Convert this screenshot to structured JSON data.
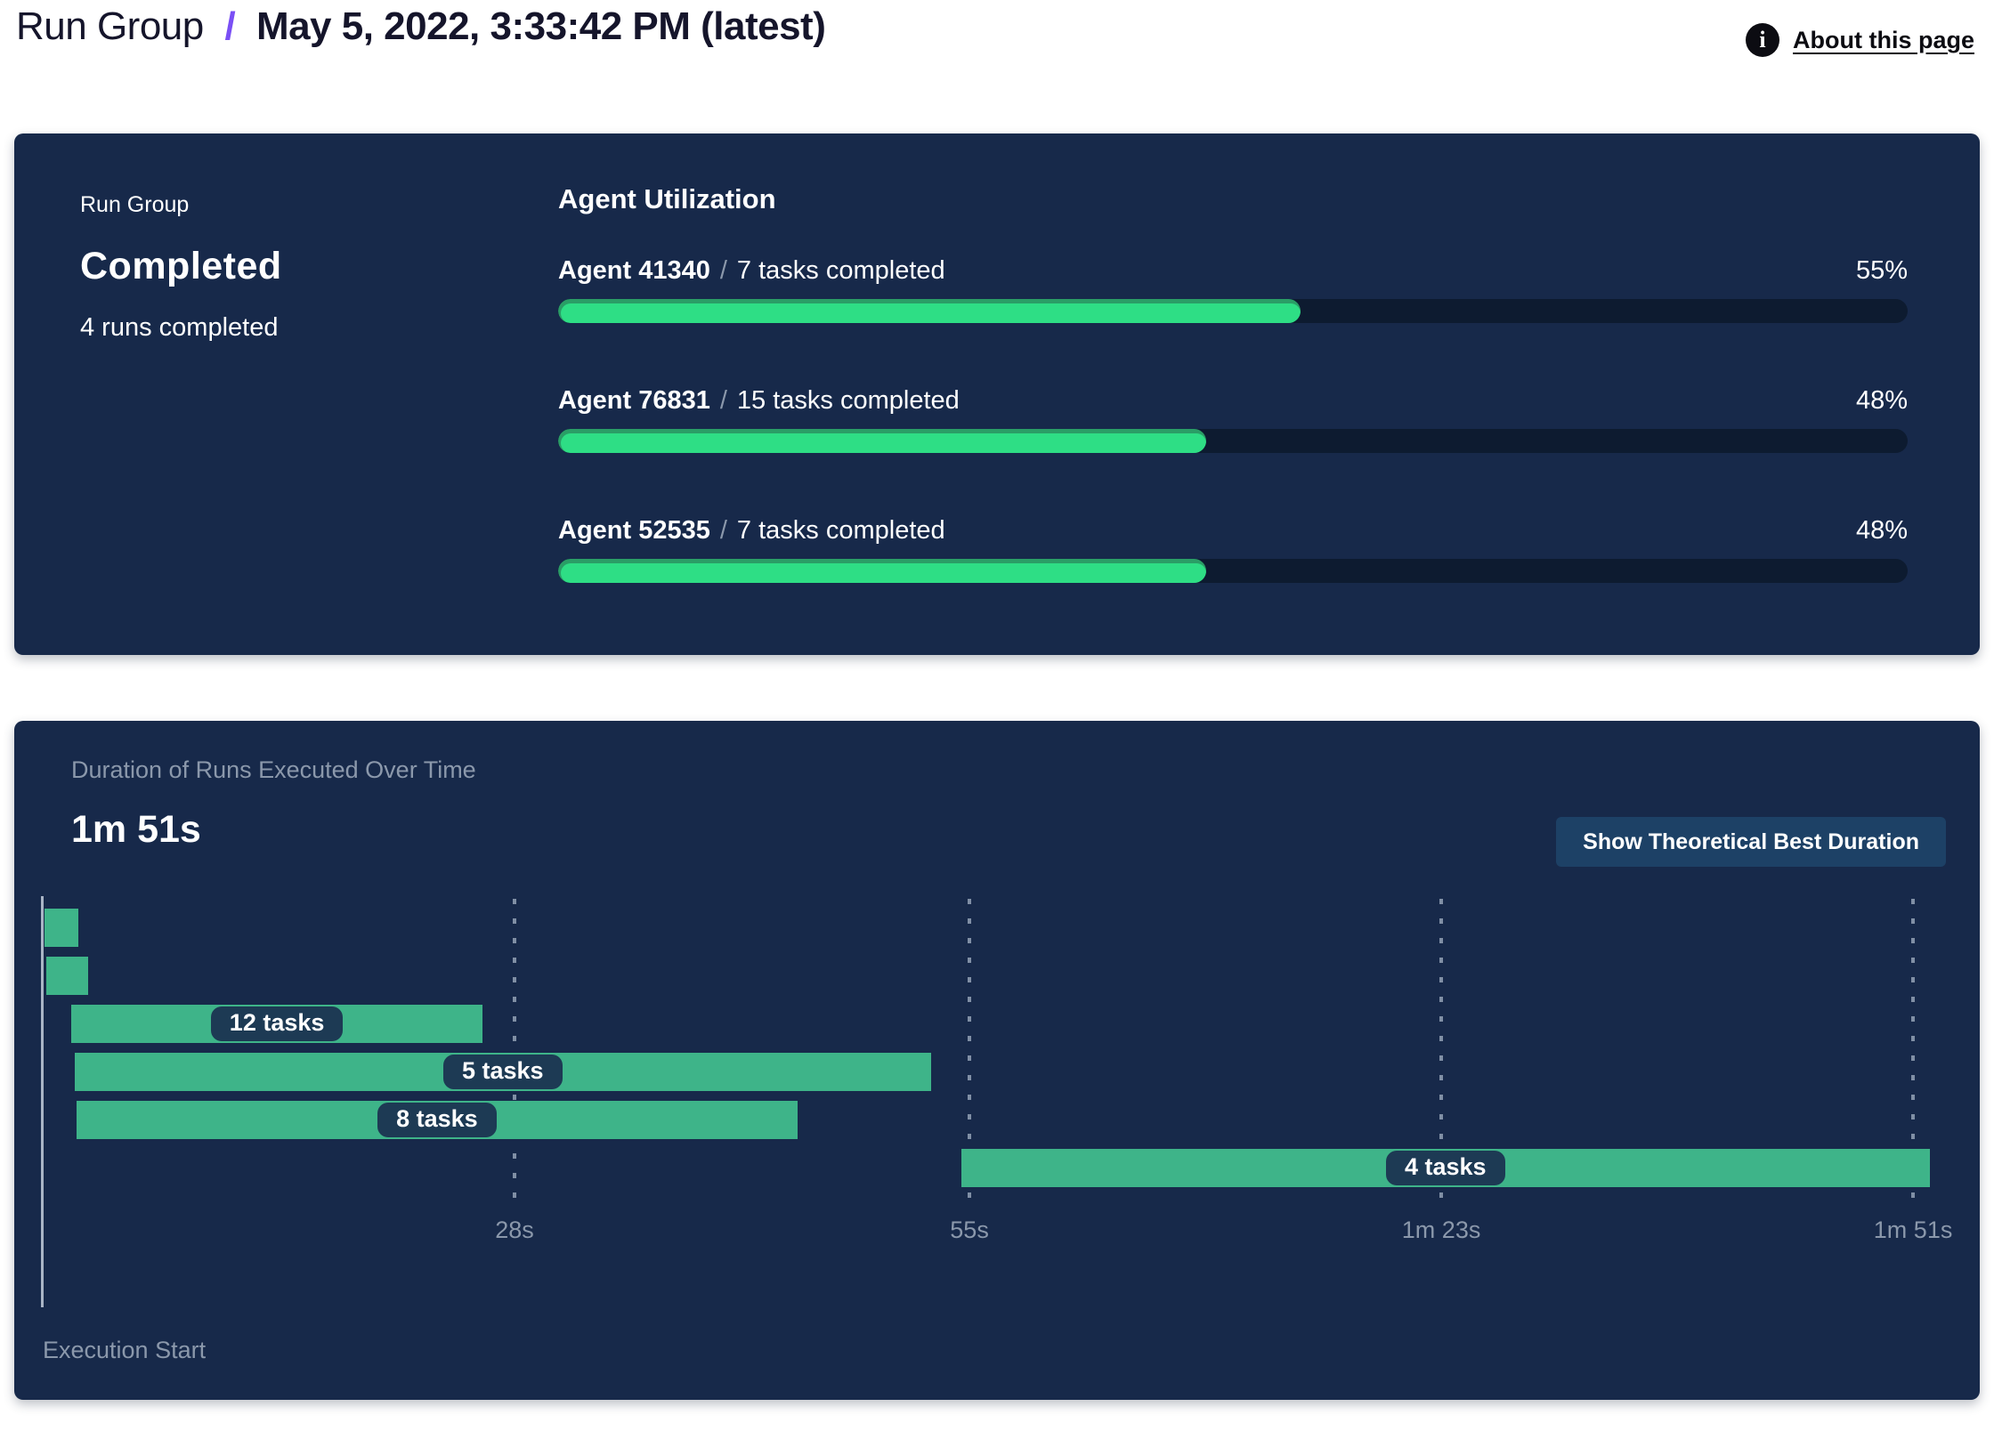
{
  "header": {
    "breadcrumb_root": "Run Group",
    "breadcrumb_separator": "/",
    "breadcrumb_current": "May 5, 2022, 3:33:42 PM (latest)",
    "info_icon": "info-icon",
    "about_link": "About this page"
  },
  "summary_panel": {
    "kicker": "Run Group",
    "status": "Completed",
    "subtitle": "4 runs completed",
    "section_title": "Agent Utilization",
    "separator": "/",
    "agents": [
      {
        "name": "Agent 41340",
        "tasks": "7 tasks completed",
        "percent": 55
      },
      {
        "name": "Agent 76831",
        "tasks": "15 tasks completed",
        "percent": 48
      },
      {
        "name": "Agent 52535",
        "tasks": "7 tasks completed",
        "percent": 48
      }
    ]
  },
  "duration_panel": {
    "title": "Duration of Runs Executed Over Time",
    "total_duration": "1m 51s",
    "button_label": "Show Theoretical Best Duration",
    "axis_label": "Execution Start"
  },
  "chart_data": [
    {
      "type": "bar",
      "orientation": "horizontal",
      "title": "Agent Utilization",
      "categories": [
        "Agent 41340",
        "Agent 76831",
        "Agent 52535"
      ],
      "values": [
        55,
        48,
        48
      ],
      "value_unit": "%",
      "annotations": [
        "7 tasks completed",
        "15 tasks completed",
        "7 tasks completed"
      ],
      "xlim": [
        0,
        100
      ],
      "grid": false
    },
    {
      "type": "bar",
      "subtype": "gantt-timeline",
      "title": "Duration of Runs Executed Over Time",
      "total_label": "1m 51s",
      "xlabel": "Execution Start",
      "xlim_seconds": [
        0,
        112
      ],
      "grid": "dashed-vertical",
      "x_ticks": [
        {
          "s": 28,
          "label": "28s"
        },
        {
          "s": 55,
          "label": "55s"
        },
        {
          "s": 83,
          "label": "1m 23s"
        },
        {
          "s": 111,
          "label": "1m 51s"
        }
      ],
      "rows": [
        {
          "start_s": 0.1,
          "end_s": 2.1,
          "tasks": null,
          "label": null
        },
        {
          "start_s": 0.2,
          "end_s": 2.7,
          "tasks": null,
          "label": null
        },
        {
          "start_s": 1.7,
          "end_s": 26.1,
          "tasks": 12,
          "label": "12 tasks"
        },
        {
          "start_s": 1.9,
          "end_s": 52.7,
          "tasks": 5,
          "label": "5 tasks"
        },
        {
          "start_s": 2.0,
          "end_s": 44.8,
          "tasks": 8,
          "label": "8 tasks"
        },
        {
          "start_s": 54.5,
          "end_s": 112.0,
          "tasks": 4,
          "label": "4 tasks"
        }
      ]
    }
  ],
  "colors": {
    "panel_bg": "#17294a",
    "track_bg": "#0d1b30",
    "progress_green": "#2ede85",
    "progress_rim_green": "#2a9e66",
    "gantt_green": "#3eb489",
    "pill_bg": "#1d3a54",
    "muted_text": "#8b98ab",
    "accent_purple": "#7a4ff5",
    "button_bg": "#1d4166",
    "grid_dash": "#93a1b5"
  }
}
